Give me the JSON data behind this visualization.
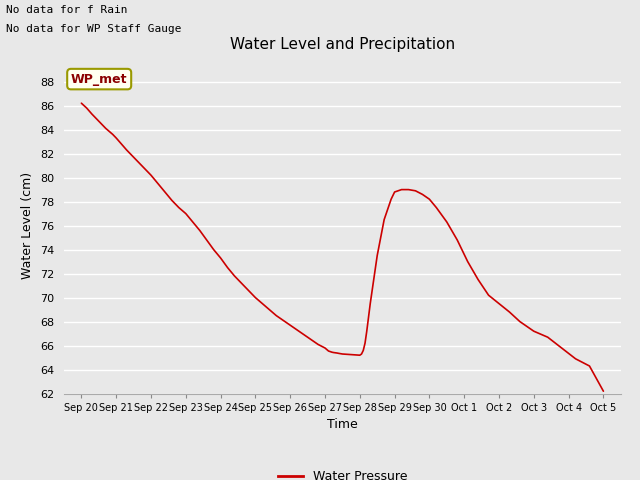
{
  "title": "Water Level and Precipitation",
  "xlabel": "Time",
  "ylabel": "Water Level (cm)",
  "text_top_left_1": "No data for f Rain",
  "text_top_left_2": "No data for WP Staff Gauge",
  "legend_label": "WP_met",
  "legend_label_bottom": "Water Pressure",
  "background_color": "#e8e8e8",
  "plot_bg_color": "#e8e8e8",
  "line_color": "#cc0000",
  "ylim": [
    62,
    90
  ],
  "yticks": [
    62,
    64,
    66,
    68,
    70,
    72,
    74,
    76,
    78,
    80,
    82,
    84,
    86,
    88
  ],
  "x_dates": [
    "Sep 20",
    "Sep 21",
    "Sep 22",
    "Sep 23",
    "Sep 24",
    "Sep 25",
    "Sep 26",
    "Sep 27",
    "Sep 28",
    "Sep 29",
    "Sep 30",
    "Oct 1",
    "Oct 2",
    "Oct 3",
    "Oct 4",
    "Oct 5"
  ],
  "x_numeric": [
    0,
    1,
    2,
    3,
    4,
    5,
    6,
    7,
    8,
    9,
    10,
    11,
    12,
    13,
    14,
    15
  ],
  "water_pressure_x": [
    0.0,
    0.15,
    0.3,
    0.5,
    0.7,
    0.9,
    1.0,
    1.15,
    1.3,
    1.5,
    1.7,
    1.9,
    2.0,
    2.2,
    2.4,
    2.6,
    2.8,
    3.0,
    3.2,
    3.4,
    3.6,
    3.8,
    4.0,
    4.2,
    4.4,
    4.6,
    4.8,
    5.0,
    5.2,
    5.4,
    5.6,
    5.8,
    6.0,
    6.2,
    6.4,
    6.6,
    6.8,
    7.0,
    7.02,
    7.04,
    7.06,
    7.08,
    7.1,
    7.15,
    7.2,
    7.25,
    7.3,
    7.35,
    7.4,
    7.5,
    7.6,
    7.7,
    7.75,
    7.8,
    7.85,
    7.9,
    7.95,
    8.0,
    8.05,
    8.1,
    8.15,
    8.2,
    8.3,
    8.5,
    8.7,
    8.9,
    9.0,
    9.2,
    9.4,
    9.6,
    9.8,
    10.0,
    10.2,
    10.5,
    10.8,
    11.1,
    11.4,
    11.7,
    12.0,
    12.3,
    12.6,
    13.0,
    13.4,
    13.8,
    14.2,
    14.6,
    15.0
  ],
  "water_pressure_y": [
    86.2,
    85.8,
    85.3,
    84.7,
    84.1,
    83.6,
    83.3,
    82.8,
    82.3,
    81.7,
    81.1,
    80.5,
    80.2,
    79.5,
    78.8,
    78.1,
    77.5,
    77.0,
    76.3,
    75.6,
    74.8,
    74.0,
    73.3,
    72.5,
    71.8,
    71.2,
    70.6,
    70.0,
    69.5,
    69.0,
    68.5,
    68.1,
    67.7,
    67.3,
    66.9,
    66.5,
    66.1,
    65.8,
    65.75,
    65.7,
    65.65,
    65.6,
    65.55,
    65.5,
    65.45,
    65.42,
    65.4,
    65.38,
    65.35,
    65.3,
    65.28,
    65.26,
    65.25,
    65.24,
    65.23,
    65.22,
    65.21,
    65.2,
    65.3,
    65.6,
    66.2,
    67.2,
    69.5,
    73.5,
    76.5,
    78.2,
    78.8,
    79.0,
    79.0,
    78.9,
    78.6,
    78.2,
    77.5,
    76.3,
    74.8,
    73.0,
    71.5,
    70.2,
    69.5,
    68.8,
    68.0,
    67.2,
    66.7,
    65.8,
    64.9,
    64.3,
    62.2
  ]
}
